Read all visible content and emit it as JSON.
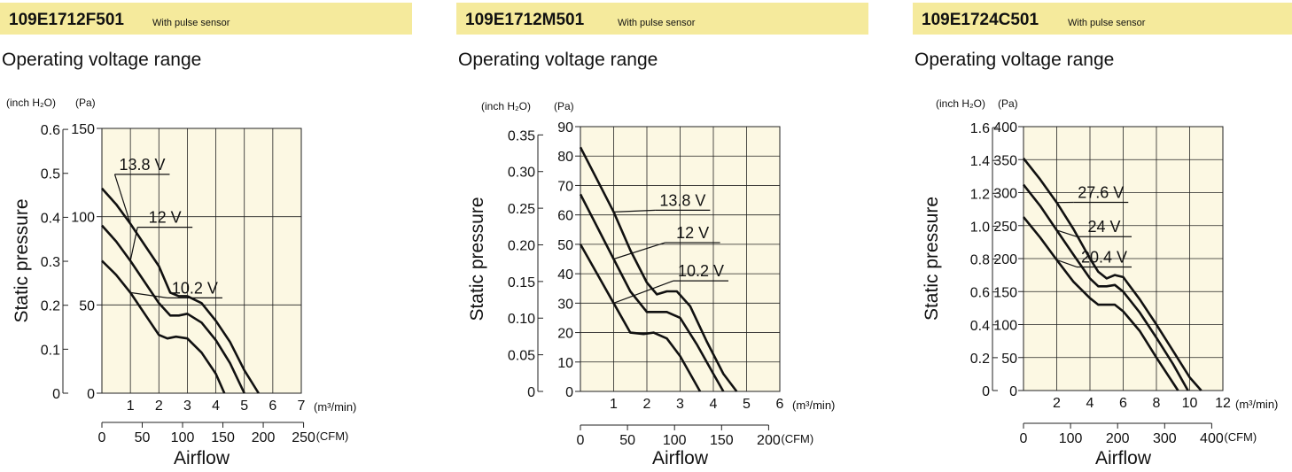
{
  "charts": [
    {
      "model": "109E1712F501",
      "sensor_note": "With pulse sensor",
      "subtitle": "Operating voltage range"
    },
    {
      "model": "109E1712M501",
      "sensor_note": "With pulse sensor",
      "subtitle": "Operating voltage range"
    },
    {
      "model": "109E1724C501",
      "sensor_note": "With pulse sensor",
      "subtitle": "Operating voltage range"
    }
  ],
  "colors": {
    "banner": "#f5ea9c",
    "plot_bg": "#fcf8e3",
    "curve": "#111111",
    "grid": "#222222"
  },
  "chart_data": [
    {
      "type": "line",
      "xlabel": "Airflow",
      "ylabel": "Static pressure",
      "x_unit": "(m³/min)",
      "x2_unit": "(CFM)",
      "y_unit": "(Pa)",
      "y2_unit": "(inch H₂O)",
      "xlim": [
        0,
        7
      ],
      "ylim": [
        0,
        150
      ],
      "x_ticks": [
        1,
        2,
        3,
        4,
        5,
        6,
        7
      ],
      "y_ticks": [
        0,
        50,
        100,
        150
      ],
      "x2_ticks": [
        0,
        50,
        100,
        150,
        200,
        250
      ],
      "y2_ticks": [
        0,
        0.1,
        0.2,
        0.3,
        0.4,
        0.5,
        0.6
      ],
      "grid": true,
      "series": [
        {
          "name": "13.8 V",
          "x": [
            0,
            0.5,
            1,
            1.5,
            2,
            2.4,
            2.7,
            3,
            3.5,
            4,
            4.5,
            5,
            5.5
          ],
          "y": [
            116,
            107,
            96,
            84,
            72,
            57,
            55,
            55,
            51,
            41,
            29,
            13,
            0
          ]
        },
        {
          "name": "12 V",
          "x": [
            0,
            0.5,
            1,
            1.5,
            2,
            2.4,
            2.7,
            3,
            3.5,
            4,
            4.5,
            5
          ],
          "y": [
            95,
            86,
            75,
            63,
            51,
            44,
            44,
            45,
            40,
            30,
            17,
            0
          ]
        },
        {
          "name": "10.2 V",
          "x": [
            0,
            0.5,
            1,
            1.5,
            2,
            2.3,
            2.6,
            3,
            3.5,
            4,
            4.3
          ],
          "y": [
            75,
            67,
            57,
            45,
            33,
            31,
            32,
            31,
            23,
            11,
            0
          ]
        }
      ]
    },
    {
      "type": "line",
      "xlabel": "Airflow",
      "ylabel": "Static pressure",
      "x_unit": "(m³/min)",
      "x2_unit": "(CFM)",
      "y_unit": "(Pa)",
      "y2_unit": "(inch H₂O)",
      "xlim": [
        0,
        6
      ],
      "ylim": [
        0,
        90
      ],
      "x_ticks": [
        1,
        2,
        3,
        4,
        5,
        6
      ],
      "y_ticks": [
        0,
        10,
        20,
        30,
        40,
        50,
        60,
        70,
        80,
        90
      ],
      "x2_ticks": [
        0,
        50,
        100,
        150,
        200
      ],
      "y2_ticks": [
        0,
        0.05,
        0.1,
        0.15,
        0.2,
        0.25,
        0.3,
        0.35
      ],
      "y2_tick_labels": [
        "0",
        "0.05",
        "0.10",
        "0.15",
        "0.20",
        "0.25",
        "0.30",
        "0.35"
      ],
      "grid": true,
      "series": [
        {
          "name": "13.8 V",
          "x": [
            0,
            0.5,
            1,
            1.5,
            2,
            2.3,
            2.6,
            2.9,
            3.3,
            3.8,
            4.3,
            4.7
          ],
          "y": [
            83,
            72,
            61,
            48,
            37,
            33,
            34,
            34,
            29,
            17,
            6,
            0
          ]
        },
        {
          "name": "12 V",
          "x": [
            0,
            0.5,
            1,
            1.5,
            2,
            2.3,
            2.6,
            3,
            3.5,
            4,
            4.3
          ],
          "y": [
            67,
            56,
            45,
            34,
            27,
            27,
            27,
            25,
            16,
            6,
            0
          ]
        },
        {
          "name": "10.2 V",
          "x": [
            0,
            0.5,
            1,
            1.5,
            1.9,
            2.2,
            2.6,
            3,
            3.3,
            3.6
          ],
          "y": [
            50,
            40,
            30,
            20,
            19.5,
            20,
            18,
            12,
            6,
            0
          ]
        }
      ]
    },
    {
      "type": "line",
      "xlabel": "Airflow",
      "ylabel": "Static pressure",
      "x_unit": "(m³/min)",
      "x2_unit": "(CFM)",
      "y_unit": "(Pa)",
      "y2_unit": "(inch H₂O)",
      "xlim": [
        0,
        12
      ],
      "ylim": [
        0,
        400
      ],
      "x_ticks": [
        2,
        4,
        6,
        8,
        10,
        12
      ],
      "y_ticks": [
        0,
        50,
        100,
        150,
        200,
        250,
        300,
        350,
        400
      ],
      "x2_ticks": [
        0,
        100,
        200,
        300,
        400
      ],
      "y2_ticks": [
        0,
        0.2,
        0.4,
        0.6,
        0.8,
        1.0,
        1.2,
        1.4,
        1.6
      ],
      "y2_tick_labels": [
        "0",
        "0.2",
        "0.4",
        "0.6",
        "0.8",
        "1.0",
        "1.2",
        "1.4",
        "1.6"
      ],
      "grid": true,
      "series": [
        {
          "name": "27.6 V",
          "x": [
            0,
            1,
            2,
            3,
            4,
            4.5,
            5,
            5.5,
            6,
            7,
            8,
            9,
            10,
            10.7
          ],
          "y": [
            352,
            320,
            285,
            245,
            200,
            180,
            170,
            175,
            172,
            138,
            100,
            60,
            20,
            0
          ]
        },
        {
          "name": "24 V",
          "x": [
            0,
            1,
            2,
            3,
            4,
            4.5,
            5,
            5.5,
            6,
            7,
            8,
            9,
            9.9
          ],
          "y": [
            312,
            280,
            243,
            206,
            170,
            158,
            158,
            160,
            150,
            118,
            80,
            40,
            0
          ]
        },
        {
          "name": "20.4 V",
          "x": [
            0,
            1,
            2,
            3,
            4,
            4.5,
            5,
            5.5,
            6,
            7,
            8,
            9.3
          ],
          "y": [
            263,
            232,
            198,
            165,
            140,
            130,
            130,
            130,
            120,
            90,
            50,
            0
          ]
        }
      ]
    }
  ]
}
